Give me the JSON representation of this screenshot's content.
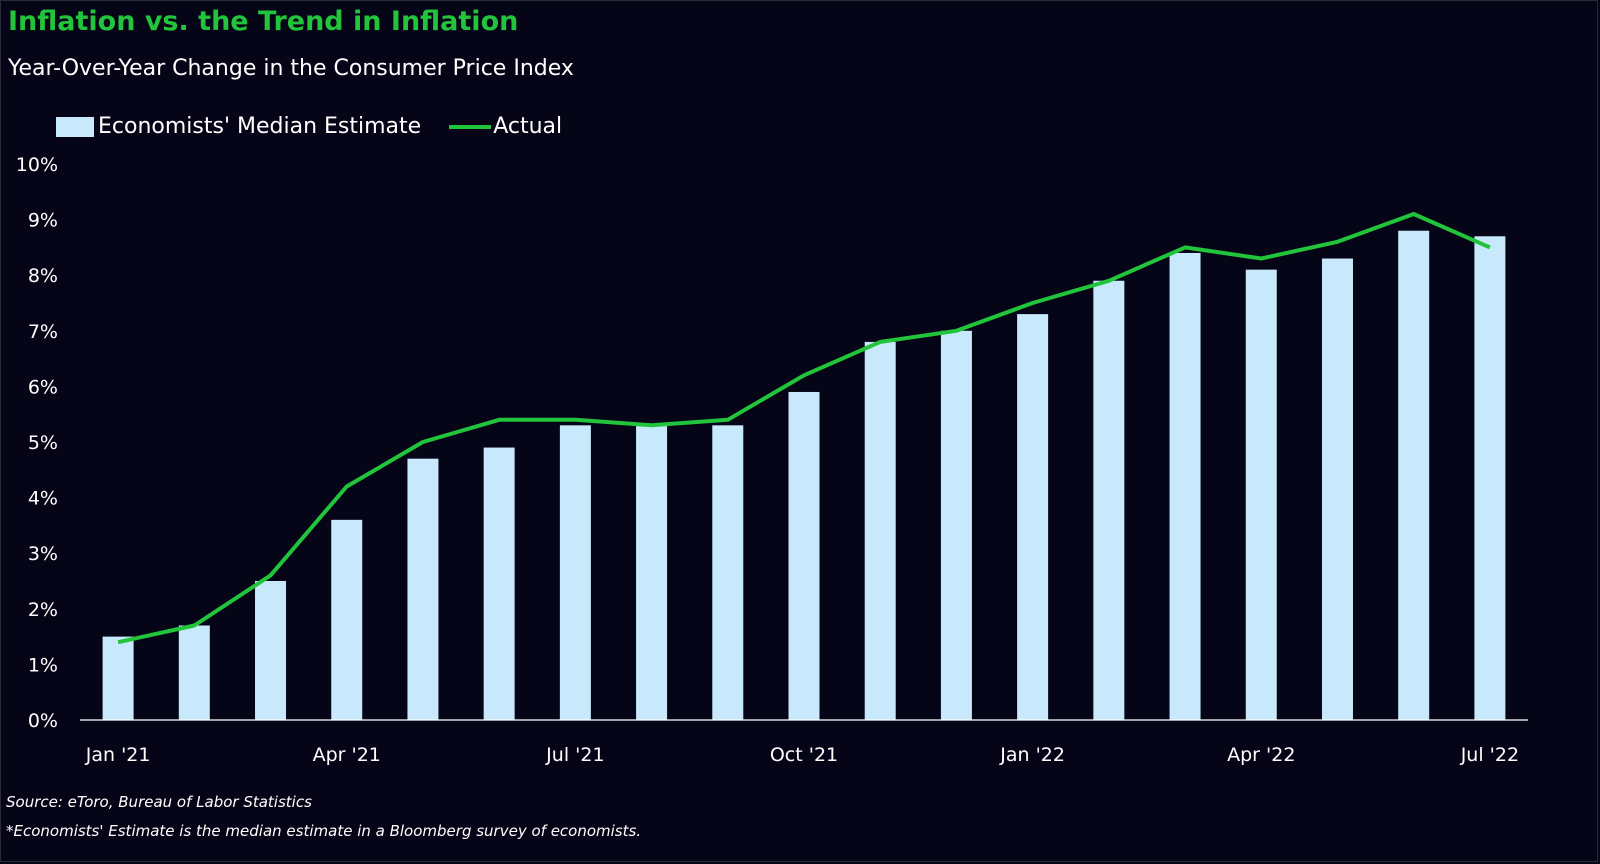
{
  "title": "Inflation vs. the Trend in Inflation",
  "subtitle": "Year-Over-Year Change in the Consumer Price Index",
  "legend": {
    "bar_label": "Economists' Median Estimate",
    "line_label": "Actual"
  },
  "footnotes": {
    "source": "Source: eToro, Bureau of Labor Statistics",
    "note": "*Economists' Estimate is the median estimate in a Bloomberg survey of economists."
  },
  "colors": {
    "background": "#050517",
    "title": "#21c43b",
    "bar": "#c7e9fb",
    "line": "#21c43b",
    "text": "#ffffff"
  },
  "chart_data": {
    "type": "bar",
    "title": "Inflation vs. the Trend in Inflation",
    "subtitle": "Year-Over-Year Change in the Consumer Price Index",
    "categories": [
      "Jan '21",
      "Feb '21",
      "Mar '21",
      "Apr '21",
      "May '21",
      "Jun '21",
      "Jul '21",
      "Aug '21",
      "Sep '21",
      "Oct '21",
      "Nov '21",
      "Dec '21",
      "Jan '22",
      "Feb '22",
      "Mar '22",
      "Apr '22",
      "May '22",
      "Jun '22",
      "Jul '22"
    ],
    "x_tick_labels": [
      "Jan '21",
      "Apr '21",
      "Jul '21",
      "Oct '21",
      "Jan '22",
      "Apr '22",
      "Jul '22"
    ],
    "x_tick_indices": [
      0,
      3,
      6,
      9,
      12,
      15,
      18
    ],
    "series": [
      {
        "name": "Economists' Median Estimate",
        "type": "bar",
        "values": [
          1.5,
          1.7,
          2.5,
          3.6,
          4.7,
          4.9,
          5.3,
          5.3,
          5.3,
          5.9,
          6.8,
          7.0,
          7.3,
          7.9,
          8.4,
          8.1,
          8.3,
          8.8,
          8.7
        ]
      },
      {
        "name": "Actual",
        "type": "line",
        "values": [
          1.4,
          1.7,
          2.6,
          4.2,
          5.0,
          5.4,
          5.4,
          5.3,
          5.4,
          6.2,
          6.8,
          7.0,
          7.5,
          7.9,
          8.5,
          8.3,
          8.6,
          9.1,
          8.5
        ]
      }
    ],
    "ylim": [
      0,
      10
    ],
    "y_ticks": [
      0,
      1,
      2,
      3,
      4,
      5,
      6,
      7,
      8,
      9,
      10
    ],
    "y_tick_suffix": "%",
    "xlabel": "",
    "ylabel": "",
    "grid": false,
    "legend_position": "top-left"
  }
}
